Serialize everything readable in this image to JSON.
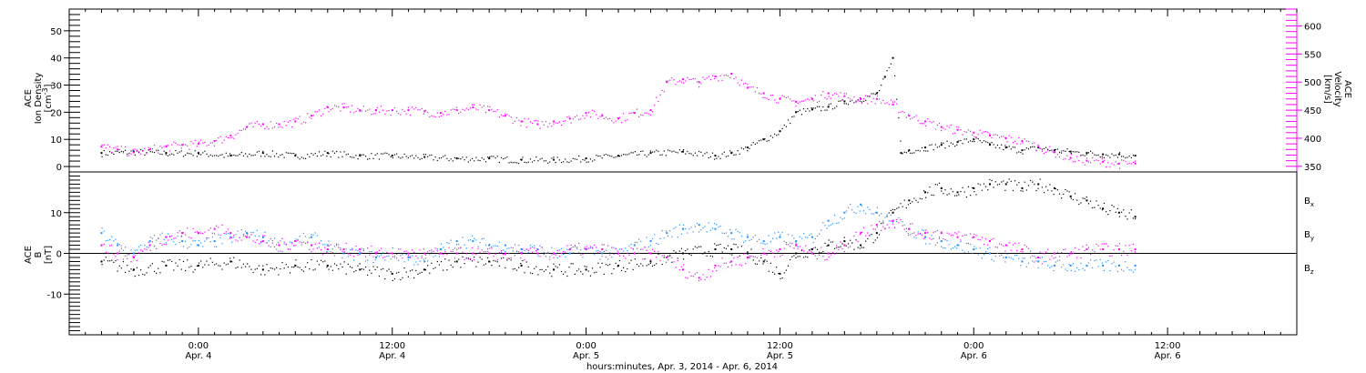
{
  "colors": {
    "black": "#000000",
    "magenta": "#ff00ff",
    "blue": "#1e90ff",
    "axis": "#000000"
  },
  "chart_data": [
    {
      "type": "scatter",
      "panel": "plasma",
      "ylabel_left": [
        "ACE",
        "Ion Density",
        "[cm",
        "-3",
        "]"
      ],
      "ylabel_right": [
        "ACE",
        "Velocity",
        "[km/s]"
      ],
      "ylim_left": [
        -2,
        58
      ],
      "ylim_right": [
        340,
        630
      ],
      "yticks_left": [
        0,
        10,
        20,
        30,
        40,
        50
      ],
      "yticks_right": [
        350,
        400,
        450,
        500,
        550,
        600
      ],
      "series": [
        {
          "axis": "left",
          "color": "black",
          "x": [
            -6,
            -4,
            -2,
            0,
            2,
            4,
            6,
            8,
            10,
            12,
            14,
            16,
            18,
            20,
            22,
            24,
            26,
            28,
            30,
            32,
            33,
            34,
            35,
            36,
            37,
            38,
            39,
            40,
            41,
            42,
            42.5,
            43,
            43.5,
            44,
            45,
            46,
            47,
            48,
            49,
            50,
            51,
            52,
            53,
            54,
            55,
            56,
            57,
            58
          ],
          "values": [
            5,
            5.5,
            5,
            5,
            4,
            5,
            4,
            5,
            4,
            4,
            3.5,
            3,
            3,
            2.5,
            2.5,
            3,
            4,
            5,
            5.5,
            4,
            5,
            7,
            10,
            13,
            20,
            21,
            22,
            24,
            25,
            27,
            33,
            40,
            5,
            6,
            7,
            8,
            9,
            10,
            8,
            7,
            6,
            7,
            6,
            5.5,
            5,
            4.5,
            4.5,
            4
          ]
        },
        {
          "axis": "right",
          "color": "magenta",
          "x": [
            -6,
            -5,
            -4,
            -3,
            -2,
            -1,
            0,
            1,
            2,
            3,
            4,
            5,
            6,
            7,
            8,
            9,
            10,
            11,
            12,
            13,
            14,
            15,
            16,
            17,
            18,
            19,
            20,
            21,
            22,
            23,
            24,
            25,
            26,
            27,
            28,
            29,
            30,
            31,
            32,
            33,
            34,
            35,
            36,
            37,
            38,
            39,
            40,
            41,
            42,
            43,
            44,
            45,
            46,
            47,
            48,
            49,
            50,
            51,
            52,
            53,
            54,
            55,
            56,
            57,
            58
          ],
          "values": [
            385,
            380,
            375,
            380,
            385,
            388,
            390,
            395,
            405,
            420,
            425,
            425,
            430,
            440,
            455,
            455,
            450,
            450,
            450,
            450,
            448,
            445,
            450,
            455,
            450,
            440,
            430,
            425,
            430,
            435,
            445,
            440,
            435,
            445,
            450,
            500,
            505,
            500,
            510,
            515,
            490,
            480,
            470,
            465,
            470,
            480,
            475,
            470,
            470,
            460,
            440,
            430,
            420,
            415,
            410,
            405,
            400,
            395,
            385,
            375,
            365,
            360,
            358,
            355,
            355
          ]
        }
      ]
    },
    {
      "type": "scatter",
      "panel": "magnetic-field",
      "ylabel_left": [
        "ACE",
        "B",
        "[nT]"
      ],
      "legend": [
        "B",
        "B",
        "B"
      ],
      "legend_sub": [
        "x",
        "y",
        "z"
      ],
      "ylim": [
        -20,
        20
      ],
      "yticks": [
        -10,
        0,
        10
      ],
      "zero_line": true,
      "series": [
        {
          "color": "black",
          "x": [
            -6,
            -4,
            -2,
            0,
            2,
            4,
            6,
            8,
            10,
            12,
            14,
            16,
            18,
            20,
            22,
            24,
            26,
            28,
            30,
            32,
            33,
            34,
            35,
            36,
            37,
            38,
            39,
            40,
            41,
            42,
            43,
            44,
            45,
            46,
            47,
            48,
            49,
            50,
            51,
            52,
            53,
            54,
            55,
            56,
            57,
            58
          ],
          "values": [
            -2,
            -4,
            -3,
            -3,
            -2,
            -4,
            -3,
            -3,
            -4,
            -5,
            -4,
            -2,
            -2,
            -3,
            -4,
            -4,
            -3,
            -2,
            0,
            1,
            1,
            0,
            -2,
            -5,
            0,
            1,
            2,
            3,
            2,
            5,
            10,
            13,
            15,
            16,
            15,
            16,
            17,
            17,
            16,
            17,
            16,
            14,
            13,
            11,
            10,
            9
          ]
        },
        {
          "color": "blue",
          "x": [
            -6,
            -5,
            -4,
            -3,
            -2,
            -1,
            0,
            1,
            2,
            3,
            4,
            5,
            6,
            7,
            8,
            9,
            10,
            11,
            12,
            13,
            14,
            15,
            16,
            17,
            18,
            19,
            20,
            21,
            22,
            23,
            24,
            25,
            26,
            27,
            28,
            29,
            30,
            31,
            32,
            33,
            34,
            35,
            36,
            37,
            38,
            39,
            40,
            41,
            42,
            43,
            44,
            45,
            46,
            47,
            48,
            49,
            50,
            51,
            52,
            53,
            54,
            55,
            56,
            57,
            58
          ],
          "values": [
            5,
            2,
            0,
            3,
            4,
            3,
            2,
            3,
            4,
            5,
            4,
            2,
            3,
            4,
            2,
            0,
            0,
            -1,
            0,
            -1,
            -2,
            1,
            3,
            3,
            2,
            2,
            1,
            1,
            0,
            0,
            1,
            0,
            0,
            2,
            3,
            5,
            6,
            7,
            6,
            5,
            4,
            3,
            4,
            3,
            4,
            8,
            10,
            12,
            10,
            8,
            6,
            4,
            3,
            2,
            1,
            0,
            -1,
            -2,
            -2,
            -3,
            -3,
            -3,
            -3,
            -3,
            -3
          ]
        },
        {
          "color": "magenta",
          "x": [
            -6,
            -5,
            -4,
            -3,
            -2,
            -1,
            0,
            1,
            2,
            3,
            4,
            5,
            6,
            7,
            8,
            9,
            10,
            11,
            12,
            13,
            14,
            15,
            16,
            17,
            18,
            19,
            20,
            21,
            22,
            23,
            24,
            25,
            26,
            27,
            28,
            29,
            30,
            31,
            32,
            33,
            34,
            35,
            36,
            37,
            38,
            39,
            40,
            41,
            42,
            43,
            44,
            45,
            46,
            47,
            48,
            49,
            50,
            51,
            52,
            53,
            54,
            55,
            56,
            57,
            58
          ],
          "values": [
            2,
            0,
            -1,
            2,
            4,
            5,
            5,
            6,
            5,
            4,
            3,
            2,
            3,
            2,
            1,
            1,
            1,
            0,
            0,
            0,
            0,
            0,
            0,
            0,
            0,
            0,
            0,
            0,
            0,
            1,
            1,
            1,
            0,
            0,
            0,
            -1,
            -4,
            -6,
            -3,
            -2,
            -1,
            0,
            1,
            2,
            0,
            0,
            2,
            5,
            7,
            8,
            6,
            5,
            5,
            4,
            4,
            3,
            2,
            1,
            -1,
            0,
            0,
            1,
            1,
            1,
            1
          ]
        }
      ]
    }
  ],
  "xaxis": {
    "xlim": [
      -8,
      68
    ],
    "ticks": [
      {
        "x": 0,
        "time": "0:00",
        "date": "Apr. 4"
      },
      {
        "x": 12,
        "time": "12:00",
        "date": "Apr. 4"
      },
      {
        "x": 24,
        "time": "0:00",
        "date": "Apr. 5"
      },
      {
        "x": 36,
        "time": "12:00",
        "date": "Apr. 5"
      },
      {
        "x": 48,
        "time": "0:00",
        "date": "Apr. 6"
      },
      {
        "x": 60,
        "time": "12:00",
        "date": "Apr. 6"
      }
    ],
    "label": "hours:minutes, Apr.  3, 2014 - Apr.  6, 2014"
  }
}
